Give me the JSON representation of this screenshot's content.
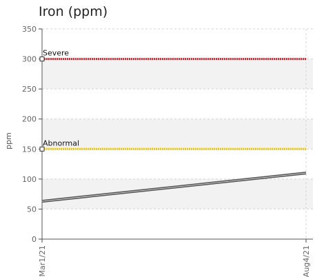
{
  "chart_data": {
    "type": "line",
    "title": "Iron (ppm)",
    "xlabel": "",
    "ylabel": "ppm",
    "ylim": [
      0,
      350
    ],
    "yticks": [
      0,
      50,
      100,
      150,
      200,
      250,
      300,
      350
    ],
    "x": [
      "Mar1/21",
      "Aug4/21"
    ],
    "series": [
      {
        "values": [
          63,
          110
        ],
        "color": "#555555"
      }
    ],
    "thresholds": [
      {
        "label": "Severe",
        "value": 300,
        "color": "#ee1c25"
      },
      {
        "label": "Abnormal",
        "value": 150,
        "color": "#f5c400"
      }
    ],
    "grid": true
  }
}
